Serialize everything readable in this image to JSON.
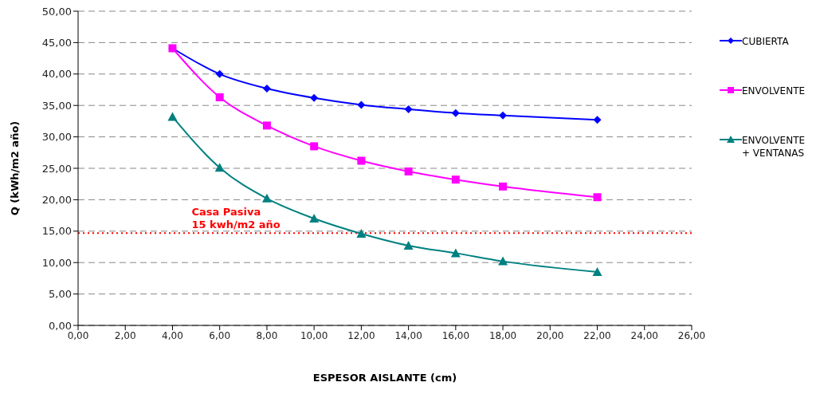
{
  "chart_data": {
    "type": "line",
    "xlabel": "ESPESOR AISLANTE (cm)",
    "ylabel": "Q (kWh/m2 año)",
    "x": [
      4,
      6,
      8,
      10,
      12,
      14,
      16,
      18,
      22
    ],
    "series": [
      {
        "name": "CUBIERTA",
        "color": "#0000ff",
        "marker": "diamond",
        "values": [
          44.1,
          40.0,
          37.7,
          36.2,
          35.1,
          34.4,
          33.8,
          33.4,
          32.7
        ]
      },
      {
        "name": "ENVOLVENTE",
        "color": "#ff00ff",
        "marker": "square",
        "values": [
          44.1,
          36.3,
          31.8,
          28.5,
          26.2,
          24.5,
          23.2,
          22.1,
          20.4
        ]
      },
      {
        "name": "ENVOLVENTE\n+ VENTANAS",
        "color": "#008080",
        "marker": "triangle",
        "values": [
          33.2,
          25.1,
          20.2,
          17.0,
          14.6,
          12.7,
          11.5,
          10.2,
          8.5
        ]
      }
    ],
    "xlim": [
      0,
      26
    ],
    "xticks": [
      {
        "value": 0,
        "label": "0,00"
      },
      {
        "value": 2,
        "label": "2,00"
      },
      {
        "value": 4,
        "label": "4,00"
      },
      {
        "value": 6,
        "label": "6,00"
      },
      {
        "value": 8,
        "label": "8,00"
      },
      {
        "value": 10,
        "label": "10,00"
      },
      {
        "value": 12,
        "label": "12,00"
      },
      {
        "value": 14,
        "label": "14,00"
      },
      {
        "value": 16,
        "label": "16,00"
      },
      {
        "value": 18,
        "label": "18,00"
      },
      {
        "value": 20,
        "label": "20,00"
      },
      {
        "value": 22,
        "label": "22,00"
      },
      {
        "value": 24,
        "label": "24,00"
      },
      {
        "value": 26,
        "label": "26,00"
      }
    ],
    "ylim": [
      0,
      50
    ],
    "yticks": [
      {
        "value": 0,
        "label": "0,00"
      },
      {
        "value": 5,
        "label": "5,00"
      },
      {
        "value": 10,
        "label": "10,00"
      },
      {
        "value": 15,
        "label": "15,00"
      },
      {
        "value": 20,
        "label": "20,00"
      },
      {
        "value": 25,
        "label": "25,00"
      },
      {
        "value": 30,
        "label": "30,00"
      },
      {
        "value": 35,
        "label": "35,00"
      },
      {
        "value": 40,
        "label": "40,00"
      },
      {
        "value": 45,
        "label": "45,00"
      },
      {
        "value": 50,
        "label": "50,00"
      }
    ],
    "ref_lines": [
      {
        "axis": "y",
        "value": 14.7,
        "label": "Casa Pasiva\n15 kwh/m2 año",
        "color": "#ff0000",
        "line_style": "dotted"
      }
    ],
    "grid": "y",
    "legend": "right",
    "line_style": "solid"
  }
}
